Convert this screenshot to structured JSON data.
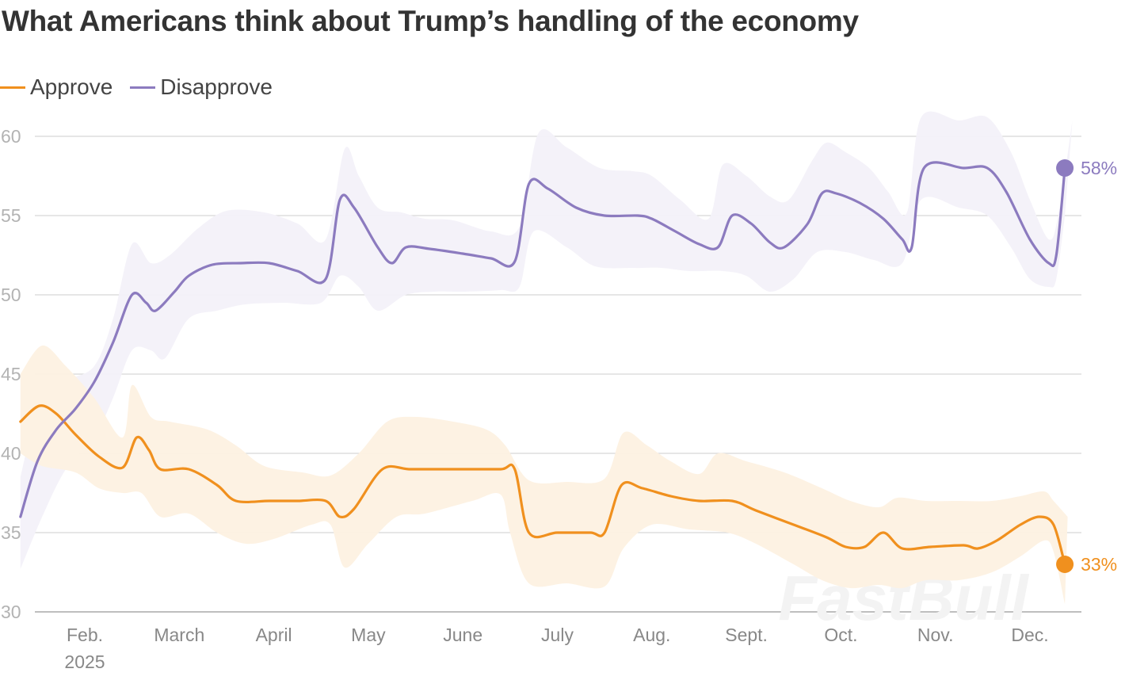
{
  "chart_data": {
    "type": "line",
    "title": "What Americans think about Trump’s handling of the economy",
    "xlabel": "",
    "ylabel": "",
    "ylim": [
      30,
      60
    ],
    "yticks": [
      30,
      35,
      40,
      45,
      50,
      55,
      60
    ],
    "ytick_labels": [
      "30",
      "35",
      "40",
      "45",
      "50",
      "55",
      "60"
    ],
    "xlim": [
      -0.6,
      10.55
    ],
    "xticks": [
      {
        "x": 0,
        "label": "Feb.",
        "sub": "2025"
      },
      {
        "x": 1,
        "label": "March"
      },
      {
        "x": 2,
        "label": "April"
      },
      {
        "x": 3,
        "label": "May"
      },
      {
        "x": 4,
        "label": "June"
      },
      {
        "x": 5,
        "label": "July"
      },
      {
        "x": 6,
        "label": "Aug."
      },
      {
        "x": 7,
        "label": "Sept."
      },
      {
        "x": 8,
        "label": "Oct."
      },
      {
        "x": 9,
        "label": "Nov."
      },
      {
        "x": 10,
        "label": "Dec."
      }
    ],
    "grid": true,
    "legend": "top-left",
    "series": [
      {
        "name": "Approve",
        "color": "#f0901e",
        "band_color": "#fdf1e2",
        "end_label": "33%",
        "points": [
          [
            -0.58,
            42
          ],
          [
            -0.38,
            43
          ],
          [
            -0.2,
            42.5
          ],
          [
            0,
            41.2
          ],
          [
            0.25,
            39.8
          ],
          [
            0.5,
            39.1
          ],
          [
            0.65,
            41
          ],
          [
            0.78,
            40.2
          ],
          [
            0.9,
            39
          ],
          [
            1.2,
            39
          ],
          [
            1.5,
            38
          ],
          [
            1.7,
            37
          ],
          [
            2.05,
            37
          ],
          [
            2.35,
            37
          ],
          [
            2.65,
            37
          ],
          [
            2.8,
            36
          ],
          [
            2.95,
            36.5
          ],
          [
            3.25,
            39
          ],
          [
            3.55,
            39
          ],
          [
            4.05,
            39
          ],
          [
            4.5,
            39
          ],
          [
            4.65,
            39
          ],
          [
            4.8,
            35
          ],
          [
            5.1,
            35
          ],
          [
            5.45,
            35
          ],
          [
            5.6,
            35
          ],
          [
            5.78,
            38
          ],
          [
            6.0,
            37.8
          ],
          [
            6.3,
            37.3
          ],
          [
            6.6,
            37
          ],
          [
            6.95,
            37
          ],
          [
            7.2,
            36.4
          ],
          [
            7.6,
            35.5
          ],
          [
            7.95,
            34.7
          ],
          [
            8.15,
            34.1
          ],
          [
            8.35,
            34.1
          ],
          [
            8.55,
            35
          ],
          [
            8.75,
            34
          ],
          [
            9.05,
            34.1
          ],
          [
            9.4,
            34.2
          ],
          [
            9.55,
            34
          ],
          [
            9.75,
            34.5
          ],
          [
            10.0,
            35.5
          ],
          [
            10.2,
            36
          ],
          [
            10.35,
            35.5
          ],
          [
            10.47,
            33
          ]
        ],
        "upper": [
          [
            -0.58,
            45
          ],
          [
            -0.35,
            46.8
          ],
          [
            -0.1,
            45.5
          ],
          [
            0.2,
            43.5
          ],
          [
            0.5,
            41
          ],
          [
            0.6,
            44.3
          ],
          [
            0.8,
            42.3
          ],
          [
            1.0,
            42
          ],
          [
            1.4,
            41.5
          ],
          [
            1.7,
            40.5
          ],
          [
            2.0,
            39.2
          ],
          [
            2.4,
            38.8
          ],
          [
            2.7,
            38.6
          ],
          [
            3.0,
            40
          ],
          [
            3.3,
            42
          ],
          [
            3.6,
            42.3
          ],
          [
            4.0,
            42
          ],
          [
            4.35,
            41.5
          ],
          [
            4.55,
            40.5
          ],
          [
            4.8,
            38.3
          ],
          [
            5.2,
            38.2
          ],
          [
            5.6,
            38.4
          ],
          [
            5.8,
            41.3
          ],
          [
            6.05,
            40.5
          ],
          [
            6.3,
            39.5
          ],
          [
            6.6,
            38.7
          ],
          [
            6.8,
            40
          ],
          [
            7.1,
            39.5
          ],
          [
            7.5,
            38.8
          ],
          [
            7.9,
            37.8
          ],
          [
            8.2,
            37
          ],
          [
            8.5,
            36.6
          ],
          [
            8.7,
            37.2
          ],
          [
            9.0,
            37
          ],
          [
            9.35,
            37
          ],
          [
            9.7,
            37
          ],
          [
            10.0,
            37.3
          ],
          [
            10.25,
            37.6
          ],
          [
            10.35,
            37
          ],
          [
            10.5,
            36
          ]
        ],
        "lower": [
          [
            -0.58,
            40
          ],
          [
            -0.35,
            39.2
          ],
          [
            0,
            38.8
          ],
          [
            0.25,
            37.8
          ],
          [
            0.5,
            37.5
          ],
          [
            0.7,
            37.5
          ],
          [
            0.9,
            36
          ],
          [
            1.2,
            36.2
          ],
          [
            1.5,
            35
          ],
          [
            1.8,
            34.3
          ],
          [
            2.1,
            34.6
          ],
          [
            2.5,
            35.5
          ],
          [
            2.7,
            35.5
          ],
          [
            2.85,
            32.8
          ],
          [
            3.1,
            34.3
          ],
          [
            3.4,
            36
          ],
          [
            3.7,
            36.2
          ],
          [
            4.2,
            37
          ],
          [
            4.5,
            37.4
          ],
          [
            4.6,
            35
          ],
          [
            4.8,
            31.8
          ],
          [
            5.2,
            31.8
          ],
          [
            5.6,
            31.6
          ],
          [
            5.8,
            34
          ],
          [
            6.1,
            35.5
          ],
          [
            6.5,
            35.2
          ],
          [
            6.9,
            35
          ],
          [
            7.2,
            34.3
          ],
          [
            7.6,
            33
          ],
          [
            7.9,
            32
          ],
          [
            8.2,
            31.5
          ],
          [
            8.5,
            31.7
          ],
          [
            8.75,
            31.5
          ],
          [
            9.0,
            32
          ],
          [
            9.35,
            32
          ],
          [
            9.7,
            32.5
          ],
          [
            10.0,
            33.5
          ],
          [
            10.25,
            34.5
          ],
          [
            10.35,
            33.8
          ],
          [
            10.47,
            30.5
          ]
        ]
      },
      {
        "name": "Disapprove",
        "color": "#8c7bbf",
        "band_color": "#f3f1f9",
        "end_label": "58%",
        "points": [
          [
            -0.58,
            36
          ],
          [
            -0.4,
            39.5
          ],
          [
            -0.2,
            41.5
          ],
          [
            0,
            42.8
          ],
          [
            0.2,
            44.5
          ],
          [
            0.4,
            47
          ],
          [
            0.6,
            50
          ],
          [
            0.75,
            49.5
          ],
          [
            0.85,
            49
          ],
          [
            1.05,
            50.2
          ],
          [
            1.2,
            51.2
          ],
          [
            1.45,
            51.9
          ],
          [
            1.75,
            52
          ],
          [
            2.05,
            52
          ],
          [
            2.35,
            51.5
          ],
          [
            2.65,
            51
          ],
          [
            2.8,
            56
          ],
          [
            2.95,
            55.5
          ],
          [
            3.2,
            53
          ],
          [
            3.35,
            52
          ],
          [
            3.5,
            53
          ],
          [
            3.75,
            52.9
          ],
          [
            4.1,
            52.6
          ],
          [
            4.4,
            52.3
          ],
          [
            4.65,
            52.1
          ],
          [
            4.8,
            57
          ],
          [
            5.0,
            56.7
          ],
          [
            5.3,
            55.5
          ],
          [
            5.6,
            55
          ],
          [
            5.95,
            55
          ],
          [
            6.1,
            54.8
          ],
          [
            6.35,
            54
          ],
          [
            6.6,
            53.2
          ],
          [
            6.8,
            53
          ],
          [
            6.95,
            55
          ],
          [
            7.15,
            54.5
          ],
          [
            7.35,
            53.3
          ],
          [
            7.5,
            53
          ],
          [
            7.75,
            54.5
          ],
          [
            7.9,
            56.4
          ],
          [
            8.05,
            56.4
          ],
          [
            8.3,
            55.8
          ],
          [
            8.55,
            54.8
          ],
          [
            8.75,
            53.5
          ],
          [
            8.85,
            53
          ],
          [
            8.98,
            58
          ],
          [
            9.4,
            58
          ],
          [
            9.65,
            58
          ],
          [
            9.85,
            56.5
          ],
          [
            10.1,
            53.5
          ],
          [
            10.3,
            52
          ],
          [
            10.38,
            52.5
          ],
          [
            10.47,
            58
          ]
        ],
        "upper": [
          [
            -0.58,
            38.5
          ],
          [
            -0.4,
            42.5
          ],
          [
            -0.1,
            44.5
          ],
          [
            0.2,
            45.5
          ],
          [
            0.4,
            48.5
          ],
          [
            0.6,
            53.2
          ],
          [
            0.8,
            52
          ],
          [
            1.0,
            52.5
          ],
          [
            1.3,
            54.2
          ],
          [
            1.6,
            55.3
          ],
          [
            2.0,
            55.2
          ],
          [
            2.35,
            54.5
          ],
          [
            2.65,
            53.5
          ],
          [
            2.85,
            59.2
          ],
          [
            3.0,
            57.5
          ],
          [
            3.2,
            55.5
          ],
          [
            3.45,
            55.2
          ],
          [
            3.7,
            54.8
          ],
          [
            4.0,
            54.7
          ],
          [
            4.4,
            54
          ],
          [
            4.7,
            54.3
          ],
          [
            4.9,
            60.2
          ],
          [
            5.2,
            59.3
          ],
          [
            5.55,
            58
          ],
          [
            5.9,
            57.8
          ],
          [
            6.1,
            57.5
          ],
          [
            6.4,
            56
          ],
          [
            6.7,
            54.8
          ],
          [
            6.85,
            58.2
          ],
          [
            7.1,
            57.5
          ],
          [
            7.35,
            56.2
          ],
          [
            7.55,
            56
          ],
          [
            7.8,
            58.5
          ],
          [
            7.95,
            59.6
          ],
          [
            8.15,
            59
          ],
          [
            8.4,
            58
          ],
          [
            8.6,
            56.5
          ],
          [
            8.8,
            55.2
          ],
          [
            8.95,
            61.2
          ],
          [
            9.35,
            61
          ],
          [
            9.65,
            61.2
          ],
          [
            9.9,
            59
          ],
          [
            10.1,
            56
          ],
          [
            10.3,
            53.5
          ],
          [
            10.4,
            55
          ],
          [
            10.55,
            61
          ]
        ],
        "lower": [
          [
            -0.58,
            32.7
          ],
          [
            -0.35,
            36
          ],
          [
            -0.1,
            39
          ],
          [
            0.2,
            41
          ],
          [
            0.4,
            43.5
          ],
          [
            0.6,
            46.5
          ],
          [
            0.8,
            46.5
          ],
          [
            0.95,
            46
          ],
          [
            1.2,
            48.5
          ],
          [
            1.5,
            49
          ],
          [
            1.8,
            49.4
          ],
          [
            2.2,
            49.5
          ],
          [
            2.6,
            49.5
          ],
          [
            2.8,
            51.2
          ],
          [
            3.0,
            50.5
          ],
          [
            3.2,
            49
          ],
          [
            3.5,
            50
          ],
          [
            3.8,
            50.2
          ],
          [
            4.1,
            50.2
          ],
          [
            4.5,
            50.3
          ],
          [
            4.7,
            50.5
          ],
          [
            4.85,
            54
          ],
          [
            5.2,
            53
          ],
          [
            5.5,
            51.8
          ],
          [
            5.9,
            51.7
          ],
          [
            6.2,
            51.7
          ],
          [
            6.5,
            51.5
          ],
          [
            6.85,
            51.5
          ],
          [
            7.1,
            51.2
          ],
          [
            7.35,
            50.2
          ],
          [
            7.6,
            51
          ],
          [
            7.85,
            52.7
          ],
          [
            8.15,
            52.7
          ],
          [
            8.45,
            52.2
          ],
          [
            8.75,
            52
          ],
          [
            8.95,
            56
          ],
          [
            9.35,
            55.5
          ],
          [
            9.65,
            55
          ],
          [
            9.9,
            53
          ],
          [
            10.1,
            51
          ],
          [
            10.3,
            50.5
          ],
          [
            10.38,
            51
          ],
          [
            10.47,
            55
          ]
        ]
      }
    ]
  },
  "watermark": "FastBull"
}
